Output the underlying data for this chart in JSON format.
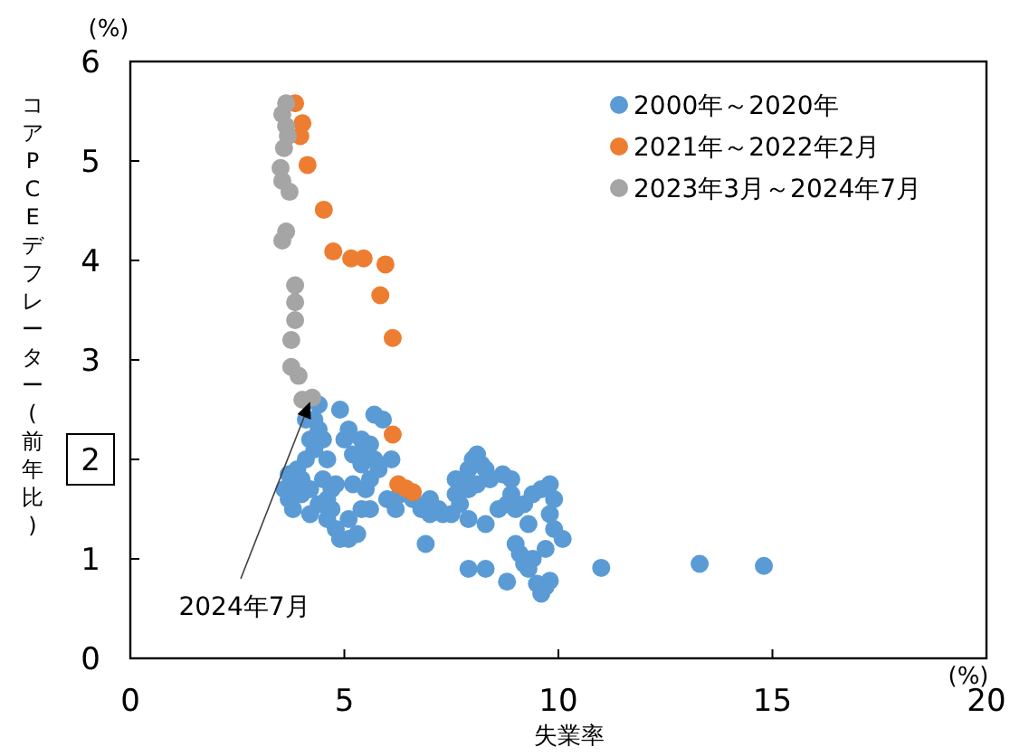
{
  "chart_data": {
    "type": "scatter",
    "xlabel": "失業率",
    "ylabel": "コアPCEデフレーター(前年比)",
    "xlim": [
      0,
      20
    ],
    "ylim": [
      0,
      6
    ],
    "xticks": [
      0,
      5,
      10,
      15,
      20
    ],
    "yticks": [
      0,
      1,
      2,
      3,
      4,
      5,
      6
    ],
    "grid": false,
    "legend": "top right",
    "marker": "circle",
    "annotations": [
      {
        "text": "2024年7月",
        "x": 4.2,
        "y": 2.58
      },
      "(%)",
      "(%)"
    ],
    "series": [
      {
        "name": "2000年～2020年",
        "color": "#5b9bd5",
        "x": [
          4.4,
          4.3,
          4.4,
          4.5,
          4.2,
          4.3,
          4.6,
          4.1,
          3.9,
          3.7,
          3.6,
          3.7,
          3.9,
          4.0,
          4.2,
          4.4,
          4.5,
          4.6,
          4.7,
          4.8,
          4.7,
          4.6,
          4.8,
          4.9,
          5.1,
          5.3,
          5.1,
          5.4,
          5.6,
          5.0,
          5.1,
          4.9,
          5.2,
          5.4,
          5.5,
          5.6,
          5.7,
          5.6,
          5.5,
          5.2,
          5.4,
          5.7,
          5.9,
          6.1,
          5.8,
          6.0,
          6.2,
          6.3,
          6.6,
          6.8,
          7.0,
          7.2,
          7.3,
          7.0,
          6.9,
          7.5,
          7.7,
          7.8,
          7.9,
          8.0,
          8.1,
          8.2,
          8.3,
          8.4,
          8.1,
          7.9,
          7.6,
          7.6,
          8.3,
          7.9,
          8.7,
          8.9,
          8.9,
          8.6,
          8.8,
          9.0,
          9.2,
          9.4,
          9.6,
          9.8,
          9.9,
          9.8,
          9.9,
          10.1,
          9.7,
          9.3,
          9.0,
          9.1,
          9.4,
          9.5,
          9.6,
          9.7,
          9.8,
          9.3,
          8.3,
          7.9,
          8.8,
          9.2,
          11.0,
          13.3,
          14.8,
          3.8,
          4.0,
          4.2,
          4.1
        ],
        "values": [
          2.55,
          2.4,
          2.3,
          2.2,
          2.2,
          2.1,
          2.0,
          2.0,
          1.9,
          1.85,
          1.7,
          1.6,
          1.75,
          1.65,
          1.7,
          1.55,
          1.8,
          1.6,
          1.7,
          1.75,
          1.5,
          1.4,
          1.3,
          1.2,
          1.2,
          1.25,
          1.4,
          1.5,
          1.5,
          2.2,
          2.3,
          2.5,
          2.05,
          1.95,
          2.1,
          2.15,
          2.0,
          1.8,
          1.7,
          1.75,
          2.2,
          2.45,
          2.4,
          2.0,
          1.9,
          1.6,
          1.5,
          1.65,
          1.6,
          1.5,
          1.45,
          1.5,
          1.45,
          1.6,
          1.15,
          1.45,
          1.55,
          1.8,
          1.9,
          2.0,
          2.05,
          1.95,
          1.9,
          1.8,
          1.75,
          1.7,
          1.65,
          1.8,
          1.35,
          1.4,
          1.85,
          1.8,
          1.65,
          1.5,
          1.55,
          1.5,
          1.55,
          1.65,
          1.7,
          1.75,
          1.6,
          1.45,
          1.3,
          1.2,
          1.1,
          1.35,
          1.15,
          1.05,
          1.0,
          0.75,
          0.65,
          0.72,
          0.78,
          0.9,
          0.9,
          0.9,
          0.77,
          0.95,
          0.91,
          0.95,
          0.93,
          1.5,
          1.8,
          1.45,
          2.4
        ]
      },
      {
        "name": "2021年～2022年2月",
        "color": "#ed7d31",
        "x": [
          6.6,
          6.43,
          6.26,
          6.13,
          6.13,
          5.84,
          5.96,
          5.45,
          5.16,
          4.74,
          4.52,
          4.14,
          4.02,
          3.97,
          3.85
        ],
        "values": [
          1.67,
          1.71,
          1.75,
          2.25,
          3.22,
          3.65,
          3.96,
          4.02,
          4.02,
          4.09,
          4.51,
          4.96,
          5.38,
          5.25,
          5.58
        ]
      },
      {
        "name": "2023年3月～2024年7月",
        "color": "#a5a5a5",
        "x": [
          3.64,
          3.55,
          3.64,
          3.68,
          3.59,
          3.51,
          3.55,
          3.72,
          3.64,
          3.55,
          3.85,
          3.85,
          3.85,
          3.76,
          3.76,
          3.93,
          4.02,
          4.25
        ],
        "values": [
          5.58,
          5.47,
          5.35,
          5.25,
          5.13,
          4.93,
          4.8,
          4.69,
          4.29,
          4.2,
          3.75,
          3.58,
          3.4,
          3.2,
          2.93,
          2.84,
          2.6,
          2.62
        ]
      }
    ]
  }
}
